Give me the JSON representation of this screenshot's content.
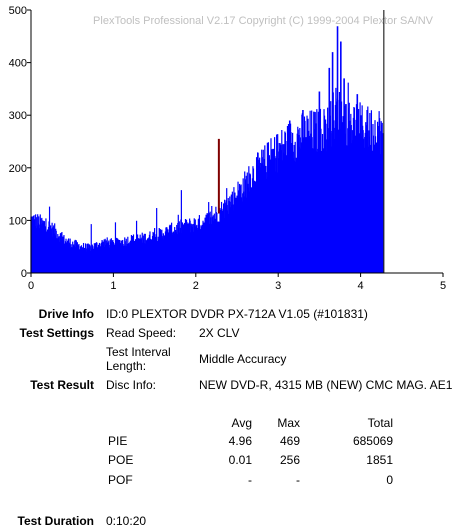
{
  "watermark": "PlexTools Professional V2.17 Copyright (C) 1999-2004 Plextor SA/NV",
  "colors": {
    "bars": "#0000ff",
    "spike": "#800000",
    "axis": "#000000",
    "grid": "#808080",
    "watermark": "#c0c0c0"
  },
  "chart_data": {
    "type": "bar",
    "xlim": [
      0,
      5
    ],
    "ylim": [
      0,
      500
    ],
    "x_ticks": [
      "0",
      "1",
      "2",
      "3",
      "4",
      "5"
    ],
    "y_ticks": [
      "0",
      "100",
      "200",
      "300",
      "400",
      "500"
    ],
    "grid": false,
    "end_marker_x": 4.27,
    "spike": {
      "x": 2.28,
      "y": 255
    },
    "envelope": [
      [
        0.0,
        100
      ],
      [
        0.1,
        95
      ],
      [
        0.2,
        88
      ],
      [
        0.3,
        78
      ],
      [
        0.4,
        62
      ],
      [
        0.5,
        55
      ],
      [
        0.6,
        50
      ],
      [
        0.7,
        47
      ],
      [
        0.8,
        52
      ],
      [
        0.9,
        58
      ],
      [
        1.0,
        55
      ],
      [
        1.1,
        58
      ],
      [
        1.2,
        62
      ],
      [
        1.3,
        64
      ],
      [
        1.4,
        66
      ],
      [
        1.5,
        70
      ],
      [
        1.6,
        74
      ],
      [
        1.7,
        80
      ],
      [
        1.8,
        85
      ],
      [
        1.9,
        88
      ],
      [
        2.0,
        92
      ],
      [
        2.1,
        95
      ],
      [
        2.2,
        105
      ],
      [
        2.3,
        115
      ],
      [
        2.4,
        130
      ],
      [
        2.5,
        148
      ],
      [
        2.6,
        165
      ],
      [
        2.7,
        185
      ],
      [
        2.8,
        200
      ],
      [
        2.9,
        215
      ],
      [
        3.0,
        228
      ],
      [
        3.1,
        240
      ],
      [
        3.2,
        250
      ],
      [
        3.3,
        258
      ],
      [
        3.4,
        262
      ],
      [
        3.5,
        265
      ],
      [
        3.6,
        270
      ],
      [
        3.7,
        300
      ],
      [
        3.8,
        290
      ],
      [
        3.9,
        278
      ],
      [
        4.0,
        272
      ],
      [
        4.1,
        268
      ],
      [
        4.2,
        268
      ],
      [
        4.27,
        265
      ]
    ],
    "peaks": [
      [
        3.5,
        345
      ],
      [
        3.62,
        390
      ],
      [
        3.66,
        420
      ],
      [
        3.72,
        469
      ],
      [
        3.76,
        440
      ],
      [
        3.8,
        370
      ],
      [
        3.3,
        310
      ],
      [
        3.14,
        290
      ],
      [
        3.96,
        340
      ],
      [
        4.08,
        310
      ]
    ]
  },
  "info": {
    "drive_info_label": "Drive Info",
    "drive_info_value": "ID:0 PLEXTOR DVDR PX-712A V1.05 (#101831)",
    "test_settings_label": "Test Settings",
    "read_speed_label": "Read Speed:",
    "read_speed_value": "2X CLV",
    "interval_label_1": "Test Interval",
    "interval_label_2": "Length:",
    "interval_value": "Middle Accuracy",
    "test_result_label": "Test Result",
    "disc_info_label": "Disc Info:",
    "disc_info_value": "NEW DVD-R, 4315 MB (NEW) CMC MAG. AE1",
    "col_avg": "Avg",
    "col_max": "Max",
    "col_total": "Total",
    "rows": [
      {
        "name": "PIE",
        "avg": "4.96",
        "max": "469",
        "total": "685069"
      },
      {
        "name": "POE",
        "avg": "0.01",
        "max": "256",
        "total": "1851"
      },
      {
        "name": "POF",
        "avg": "-",
        "max": "-",
        "total": "0"
      }
    ],
    "duration_label": "Test Duration",
    "duration_value": "0:10:20"
  }
}
